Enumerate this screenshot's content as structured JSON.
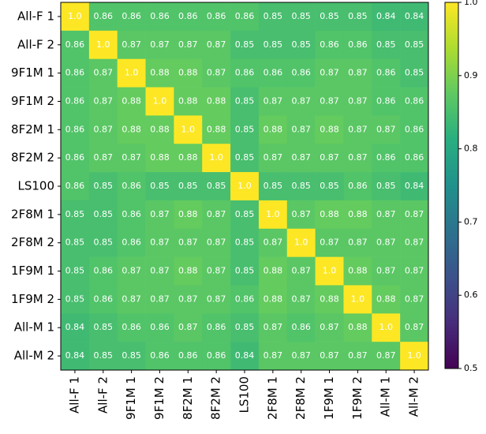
{
  "chart_data": {
    "type": "heatmap",
    "colormap": "viridis",
    "categories": [
      "All-F 1",
      "All-F 2",
      "9F1M 1",
      "9F1M 2",
      "8F2M 1",
      "8F2M 2",
      "LS100",
      "2F8M 1",
      "2F8M 2",
      "1F9M 1",
      "1F9M 2",
      "All-M 1",
      "All-M 2"
    ],
    "values": [
      [
        1,
        0.86,
        0.86,
        0.86,
        0.86,
        0.86,
        0.86,
        0.85,
        0.85,
        0.85,
        0.85,
        0.84,
        0.84
      ],
      [
        0.86,
        1,
        0.87,
        0.87,
        0.87,
        0.87,
        0.85,
        0.85,
        0.85,
        0.86,
        0.86,
        0.85,
        0.85
      ],
      [
        0.86,
        0.87,
        1,
        0.88,
        0.88,
        0.87,
        0.86,
        0.86,
        0.86,
        0.87,
        0.87,
        0.86,
        0.85
      ],
      [
        0.86,
        0.87,
        0.88,
        1,
        0.88,
        0.88,
        0.85,
        0.87,
        0.87,
        0.87,
        0.87,
        0.86,
        0.86
      ],
      [
        0.86,
        0.87,
        0.88,
        0.88,
        1,
        0.88,
        0.85,
        0.88,
        0.87,
        0.88,
        0.87,
        0.87,
        0.86
      ],
      [
        0.86,
        0.87,
        0.87,
        0.88,
        0.88,
        1,
        0.85,
        0.87,
        0.87,
        0.87,
        0.87,
        0.86,
        0.86
      ],
      [
        0.86,
        0.85,
        0.86,
        0.85,
        0.85,
        0.85,
        1,
        0.85,
        0.85,
        0.85,
        0.86,
        0.85,
        0.84
      ],
      [
        0.85,
        0.85,
        0.86,
        0.87,
        0.88,
        0.87,
        0.85,
        1,
        0.87,
        0.88,
        0.88,
        0.87,
        0.87
      ],
      [
        0.85,
        0.85,
        0.86,
        0.87,
        0.87,
        0.87,
        0.85,
        0.87,
        1,
        0.87,
        0.87,
        0.87,
        0.87
      ],
      [
        0.85,
        0.86,
        0.87,
        0.87,
        0.88,
        0.87,
        0.85,
        0.88,
        0.87,
        1,
        0.88,
        0.87,
        0.87
      ],
      [
        0.85,
        0.86,
        0.87,
        0.87,
        0.87,
        0.87,
        0.86,
        0.88,
        0.87,
        0.88,
        1,
        0.88,
        0.87
      ],
      [
        0.84,
        0.85,
        0.86,
        0.86,
        0.87,
        0.86,
        0.85,
        0.87,
        0.86,
        0.87,
        0.88,
        1,
        0.87
      ],
      [
        0.84,
        0.85,
        0.85,
        0.86,
        0.86,
        0.86,
        0.84,
        0.87,
        0.87,
        0.87,
        0.87,
        0.87,
        1
      ]
    ],
    "value_labels": [
      [
        "1.0",
        "0.86",
        "0.86",
        "0.86",
        "0.86",
        "0.86",
        "0.86",
        "0.85",
        "0.85",
        "0.85",
        "0.85",
        "0.84",
        "0.84"
      ],
      [
        "0.86",
        "1.0",
        "0.87",
        "0.87",
        "0.87",
        "0.87",
        "0.85",
        "0.85",
        "0.85",
        "0.86",
        "0.86",
        "0.85",
        "0.85"
      ],
      [
        "0.86",
        "0.87",
        "1.0",
        "0.88",
        "0.88",
        "0.87",
        "0.86",
        "0.86",
        "0.86",
        "0.87",
        "0.87",
        "0.86",
        "0.85"
      ],
      [
        "0.86",
        "0.87",
        "0.88",
        "1.0",
        "0.88",
        "0.88",
        "0.85",
        "0.87",
        "0.87",
        "0.87",
        "0.87",
        "0.86",
        "0.86"
      ],
      [
        "0.86",
        "0.87",
        "0.88",
        "0.88",
        "1.0",
        "0.88",
        "0.85",
        "0.88",
        "0.87",
        "0.88",
        "0.87",
        "0.87",
        "0.86"
      ],
      [
        "0.86",
        "0.87",
        "0.87",
        "0.88",
        "0.88",
        "1.0",
        "0.85",
        "0.87",
        "0.87",
        "0.87",
        "0.87",
        "0.86",
        "0.86"
      ],
      [
        "0.86",
        "0.85",
        "0.86",
        "0.85",
        "0.85",
        "0.85",
        "1.0",
        "0.85",
        "0.85",
        "0.85",
        "0.86",
        "0.85",
        "0.84"
      ],
      [
        "0.85",
        "0.85",
        "0.86",
        "0.87",
        "0.88",
        "0.87",
        "0.85",
        "1.0",
        "0.87",
        "0.88",
        "0.88",
        "0.87",
        "0.87"
      ],
      [
        "0.85",
        "0.85",
        "0.86",
        "0.87",
        "0.87",
        "0.87",
        "0.85",
        "0.87",
        "1.0",
        "0.87",
        "0.87",
        "0.87",
        "0.87"
      ],
      [
        "0.85",
        "0.86",
        "0.87",
        "0.87",
        "0.88",
        "0.87",
        "0.85",
        "0.88",
        "0.87",
        "1.0",
        "0.88",
        "0.87",
        "0.87"
      ],
      [
        "0.85",
        "0.86",
        "0.87",
        "0.87",
        "0.87",
        "0.87",
        "0.86",
        "0.88",
        "0.87",
        "0.88",
        "1.0",
        "0.88",
        "0.87"
      ],
      [
        "0.84",
        "0.85",
        "0.86",
        "0.86",
        "0.87",
        "0.86",
        "0.85",
        "0.87",
        "0.86",
        "0.87",
        "0.88",
        "1.0",
        "0.87"
      ],
      [
        "0.84",
        "0.85",
        "0.85",
        "0.86",
        "0.86",
        "0.86",
        "0.84",
        "0.87",
        "0.87",
        "0.87",
        "0.87",
        "0.87",
        "1.0"
      ]
    ],
    "clim": [
      0.5,
      1
    ],
    "cticks": [
      0.5,
      0.6,
      0.7,
      0.8,
      0.9,
      {
        "value": 1,
        "label": "1.0"
      }
    ]
  }
}
